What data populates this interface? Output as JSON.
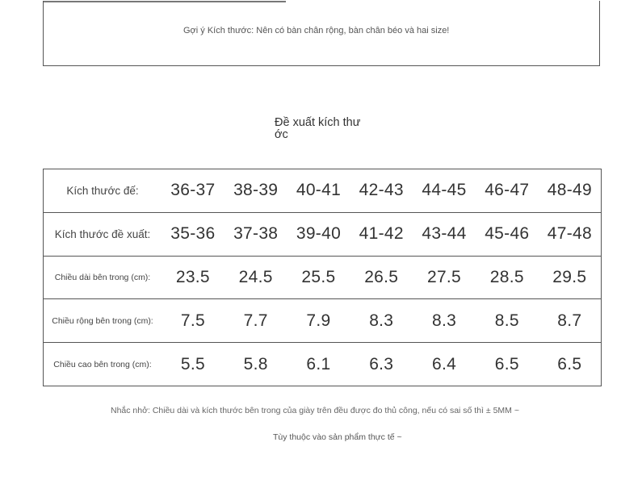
{
  "tip": {
    "text": "Gợi ý Kích thước: Nên có bàn chân rộng, bàn chân béo và hai size!"
  },
  "section": {
    "title": "Đề xuất kích thước"
  },
  "table": {
    "rows": [
      {
        "label": "Kích thước đế:",
        "values": [
          "36-37",
          "38-39",
          "40-41",
          "42-43",
          "44-45",
          "46-47",
          "48-49"
        ]
      },
      {
        "label": "Kích thước đề xuất:",
        "values": [
          "35-36",
          "37-38",
          "39-40",
          "41-42",
          "43-44",
          "45-46",
          "47-48"
        ]
      },
      {
        "label": "Chiều dài bên trong (cm):",
        "values": [
          "23.5",
          "24.5",
          "25.5",
          "26.5",
          "27.5",
          "28.5",
          "29.5"
        ]
      },
      {
        "label": "Chiều rộng bên trong (cm):",
        "values": [
          "7.5",
          "7.7",
          "7.9",
          "8.3",
          "8.3",
          "8.5",
          "8.7"
        ]
      },
      {
        "label": "Chiều cao bên trong (cm):",
        "values": [
          "5.5",
          "5.8",
          "6.1",
          "6.3",
          "6.4",
          "6.5",
          "6.5"
        ]
      }
    ]
  },
  "footer": {
    "note": "Nhắc nhở: Chiều dài và kích thước bên trong của giày trên đều được đo thủ công, nếu có sai số thì ± 5MM ~",
    "sub": "Tùy thuộc vào sản phẩm thực tế ~"
  }
}
